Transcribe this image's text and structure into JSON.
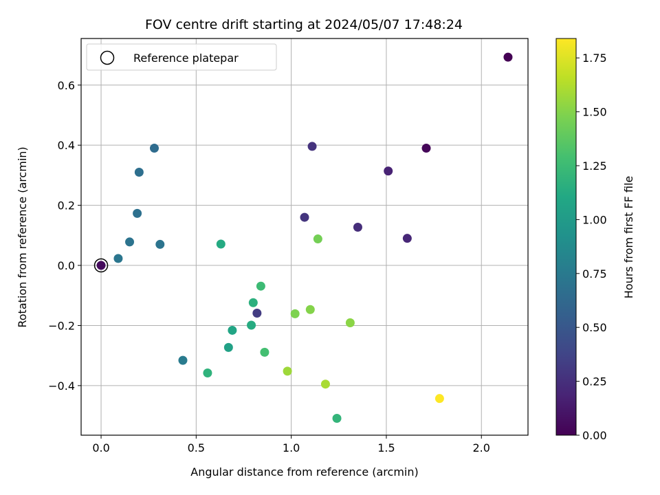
{
  "chart_data": {
    "type": "scatter",
    "title": "FOV centre drift starting at 2024/05/07 17:48:24",
    "xlabel": "Angular distance from reference (arcmin)",
    "ylabel": "Rotation from reference (arcmin)",
    "xlim": [
      -0.105,
      2.245
    ],
    "ylim": [
      -0.565,
      0.755
    ],
    "xticks": [
      0.0,
      0.5,
      1.0,
      1.5,
      2.0
    ],
    "xtick_labels": [
      "0.0",
      "0.5",
      "1.0",
      "1.5",
      "2.0"
    ],
    "yticks": [
      -0.4,
      -0.2,
      0.0,
      0.2,
      0.4,
      0.6
    ],
    "ytick_labels": [
      "−0.4",
      "−0.2",
      "0.0",
      "0.2",
      "0.4",
      "0.6"
    ],
    "grid": true,
    "legend": {
      "placement": "upper-left",
      "entries": [
        "Reference platepar"
      ]
    },
    "reference_point": {
      "x": 0.0,
      "y": 0.0
    },
    "colorbar": {
      "label": "Hours from first FF file",
      "range": [
        0.0,
        1.84
      ],
      "ticks": [
        0.0,
        0.25,
        0.5,
        0.75,
        1.0,
        1.25,
        1.5,
        1.75
      ],
      "tick_labels": [
        "0.00",
        "0.25",
        "0.50",
        "0.75",
        "1.00",
        "1.25",
        "1.50",
        "1.75"
      ],
      "colormap": "viridis"
    },
    "points": [
      {
        "x": 2.14,
        "y": 0.693,
        "hours": 0.0
      },
      {
        "x": 1.71,
        "y": 0.39,
        "hours": 0.03
      },
      {
        "x": 1.51,
        "y": 0.314,
        "hours": 0.18
      },
      {
        "x": 1.61,
        "y": 0.09,
        "hours": 0.2
      },
      {
        "x": 1.35,
        "y": 0.127,
        "hours": 0.24
      },
      {
        "x": 1.11,
        "y": 0.396,
        "hours": 0.27
      },
      {
        "x": 1.07,
        "y": 0.16,
        "hours": 0.28
      },
      {
        "x": 0.82,
        "y": -0.159,
        "hours": 0.32
      },
      {
        "x": 0.0,
        "y": 0.0,
        "hours": 0.05
      },
      {
        "x": 0.28,
        "y": 0.39,
        "hours": 0.65
      },
      {
        "x": 0.2,
        "y": 0.31,
        "hours": 0.67
      },
      {
        "x": 0.19,
        "y": 0.173,
        "hours": 0.68
      },
      {
        "x": 0.15,
        "y": 0.078,
        "hours": 0.7
      },
      {
        "x": 0.31,
        "y": 0.07,
        "hours": 0.71
      },
      {
        "x": 0.09,
        "y": 0.023,
        "hours": 0.72
      },
      {
        "x": 0.43,
        "y": -0.316,
        "hours": 0.76
      },
      {
        "x": 0.67,
        "y": -0.273,
        "hours": 1.05
      },
      {
        "x": 0.69,
        "y": -0.216,
        "hours": 1.08
      },
      {
        "x": 0.63,
        "y": 0.071,
        "hours": 1.12
      },
      {
        "x": 0.79,
        "y": -0.199,
        "hours": 1.13
      },
      {
        "x": 0.8,
        "y": -0.124,
        "hours": 1.16
      },
      {
        "x": 0.56,
        "y": -0.358,
        "hours": 1.18
      },
      {
        "x": 1.24,
        "y": -0.509,
        "hours": 1.2
      },
      {
        "x": 0.84,
        "y": -0.069,
        "hours": 1.25
      },
      {
        "x": 0.86,
        "y": -0.289,
        "hours": 1.28
      },
      {
        "x": 1.14,
        "y": 0.088,
        "hours": 1.45
      },
      {
        "x": 1.02,
        "y": -0.161,
        "hours": 1.48
      },
      {
        "x": 1.1,
        "y": -0.147,
        "hours": 1.5
      },
      {
        "x": 1.31,
        "y": -0.191,
        "hours": 1.52
      },
      {
        "x": 0.98,
        "y": -0.352,
        "hours": 1.57
      },
      {
        "x": 1.18,
        "y": -0.395,
        "hours": 1.6
      },
      {
        "x": 1.78,
        "y": -0.443,
        "hours": 1.84
      }
    ]
  }
}
